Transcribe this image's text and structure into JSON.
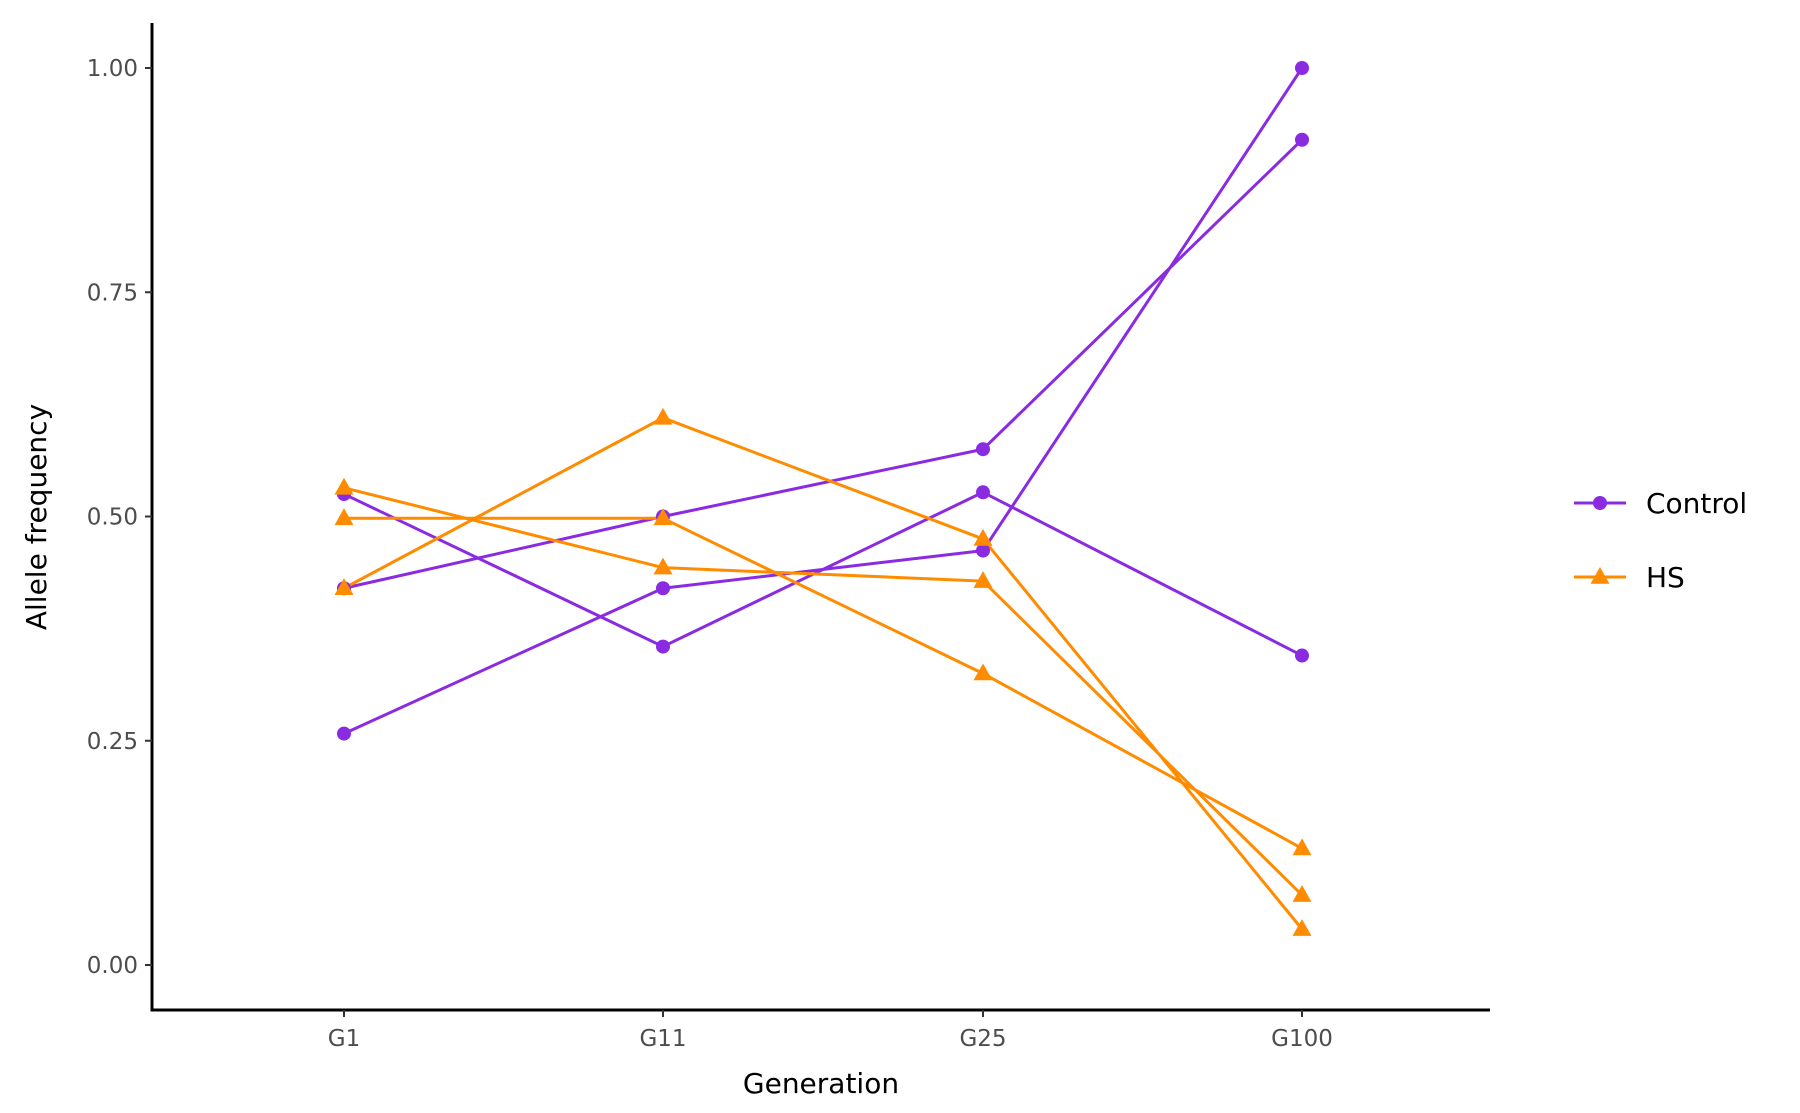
{
  "chart_data": {
    "type": "line",
    "xlabel": "Generation",
    "ylabel": "Allele frequency",
    "categories": [
      "G1",
      "G11",
      "G25",
      "G100"
    ],
    "ylim": [
      -0.05,
      1.05
    ],
    "yticks": [
      0.0,
      0.25,
      0.5,
      0.75,
      1.0
    ],
    "ytick_labels": [
      "0.00",
      "0.25",
      "0.50",
      "0.75",
      "1.00"
    ],
    "grid": false,
    "legend_position": "right",
    "groups": [
      {
        "name": "Control",
        "color": "#8A2BE2",
        "marker": "circle"
      },
      {
        "name": "HS",
        "color": "#FF8C00",
        "marker": "triangle"
      }
    ],
    "series": [
      {
        "group": "Control",
        "values": [
          0.42,
          0.5,
          0.575,
          0.92
        ]
      },
      {
        "group": "Control",
        "values": [
          0.525,
          0.355,
          0.527,
          0.345
        ]
      },
      {
        "group": "Control",
        "values": [
          0.258,
          0.42,
          0.462,
          1.0
        ]
      },
      {
        "group": "HS",
        "values": [
          0.42,
          0.61,
          0.475,
          0.04
        ]
      },
      {
        "group": "HS",
        "values": [
          0.532,
          0.443,
          0.428,
          0.078
        ]
      },
      {
        "group": "HS",
        "values": [
          0.498,
          0.498,
          0.325,
          0.13
        ]
      }
    ]
  }
}
